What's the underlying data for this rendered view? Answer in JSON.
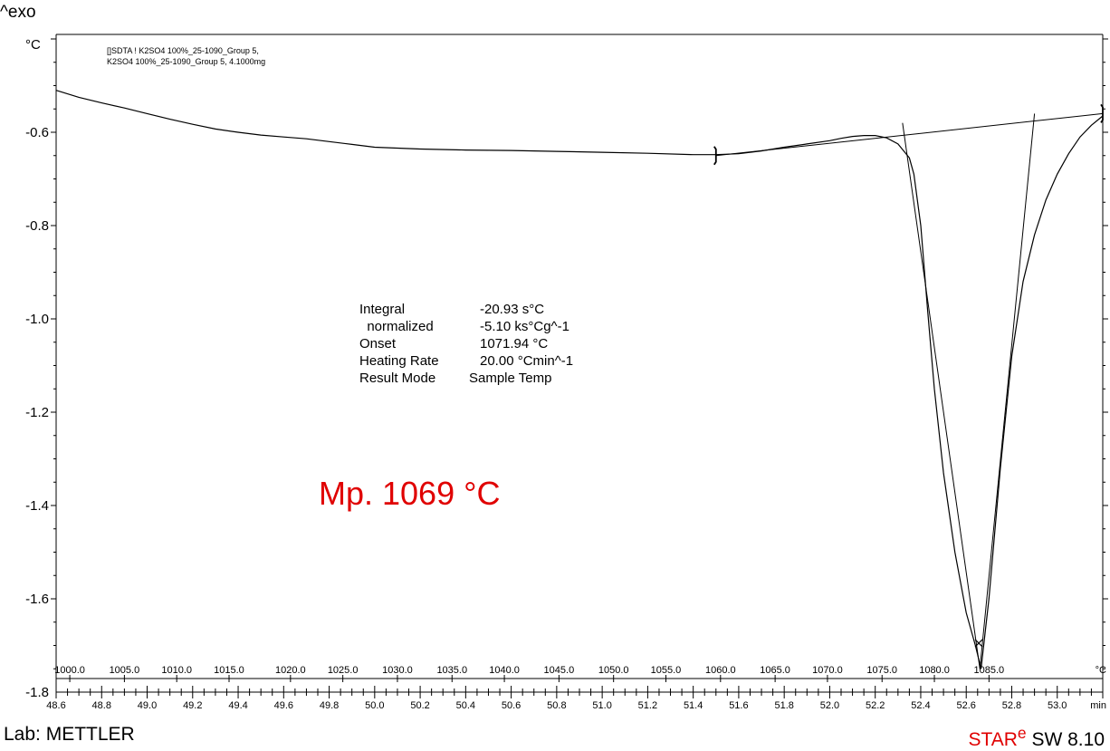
{
  "header": {
    "exo_label": "^exo"
  },
  "footer": {
    "lab": "Lab: METTLER",
    "software_prefix": "STAR",
    "software_superscript": "e",
    "software_suffix": " SW 8.10"
  },
  "chart_data": {
    "type": "line",
    "y_unit": "°C",
    "x_unit": "min",
    "temp_unit": "°C",
    "ylim": [
      -1.8,
      -0.4
    ],
    "yticks": [
      -0.6,
      -0.8,
      -1.0,
      -1.2,
      -1.4,
      -1.6,
      -1.8
    ],
    "ytick_labels": [
      "-0.6",
      "-0.8",
      "-1.0",
      "-1.2",
      "-1.4",
      "-1.6",
      "-1.8"
    ],
    "xlim": [
      48.6,
      53.2
    ],
    "xticks": [
      48.6,
      48.8,
      49.0,
      49.2,
      49.4,
      49.6,
      49.8,
      50.0,
      50.2,
      50.4,
      50.6,
      50.8,
      51.0,
      51.2,
      51.4,
      51.6,
      51.8,
      52.0,
      52.2,
      52.4,
      52.6,
      52.8,
      53.0
    ],
    "xtick_labels": [
      "48.6",
      "48.8",
      "49.0",
      "49.2",
      "49.4",
      "49.6",
      "49.8",
      "50.0",
      "50.2",
      "50.4",
      "50.6",
      "50.8",
      "51.0",
      "51.2",
      "51.4",
      "51.6",
      "51.8",
      "52.0",
      "52.2",
      "52.4",
      "52.6",
      "52.8",
      "53.0"
    ],
    "temp_ticks": [
      1000,
      1005,
      1010,
      1015,
      1020,
      1025,
      1030,
      1035,
      1040,
      1045,
      1050,
      1055,
      1060,
      1065,
      1070,
      1075,
      1080,
      1085
    ],
    "temp_tick_labels": [
      "1000.0",
      "1005.0",
      "1010.0",
      "1015.0",
      "1020.0",
      "1025.0",
      "1030.0",
      "1035.0",
      "1040.0",
      "1045.0",
      "1050.0",
      "1055.0",
      "1060.0",
      "1065.0",
      "1070.0",
      "1075.0",
      "1080.0",
      "1085.0"
    ],
    "temp_axis_x": [
      48.66,
      48.9,
      49.13,
      49.36,
      49.63,
      49.86,
      50.1,
      50.34,
      50.57,
      50.81,
      51.05,
      51.28,
      51.52,
      51.76,
      51.99,
      52.23,
      52.46,
      52.7
    ],
    "legend_lines": [
      "[]SDTA ! K2SO4 100%_25-1090_Group 5,",
      "K2SO4 100%_25-1090_Group 5, 4.1000mg"
    ],
    "series": [
      {
        "x": [
          48.6,
          48.7,
          48.8,
          48.9,
          49.0,
          49.1,
          49.2,
          49.3,
          49.4,
          49.5,
          49.6,
          49.7,
          49.8,
          49.9,
          50.0,
          50.2,
          50.4,
          50.6,
          50.8,
          51.0,
          51.2,
          51.4,
          51.5,
          51.6,
          51.7,
          51.8,
          51.9,
          52.0,
          52.05,
          52.1,
          52.15,
          52.2,
          52.25,
          52.3,
          52.35,
          52.37,
          52.4,
          52.43,
          52.46,
          52.5,
          52.55,
          52.6,
          52.64,
          52.665,
          52.7,
          52.75,
          52.8,
          52.85,
          52.9,
          52.95,
          53.0,
          53.05,
          53.1,
          53.15,
          53.2
        ],
        "y": [
          -0.51,
          -0.525,
          -0.537,
          -0.548,
          -0.56,
          -0.572,
          -0.583,
          -0.593,
          -0.6,
          -0.606,
          -0.61,
          -0.614,
          -0.62,
          -0.626,
          -0.632,
          -0.636,
          -0.638,
          -0.639,
          -0.641,
          -0.643,
          -0.645,
          -0.648,
          -0.648,
          -0.646,
          -0.64,
          -0.632,
          -0.625,
          -0.618,
          -0.613,
          -0.609,
          -0.607,
          -0.607,
          -0.612,
          -0.625,
          -0.655,
          -0.69,
          -0.8,
          -0.98,
          -1.15,
          -1.33,
          -1.5,
          -1.63,
          -1.7,
          -1.75,
          -1.6,
          -1.32,
          -1.08,
          -0.92,
          -0.82,
          -0.745,
          -0.69,
          -0.646,
          -0.61,
          -0.585,
          -0.565
        ]
      }
    ],
    "baseline": {
      "x": [
        51.5,
        53.2
      ],
      "y": [
        -0.65,
        -0.56
      ]
    },
    "tangents": [
      {
        "x": [
          52.32,
          52.66
        ],
        "y": [
          -0.58,
          -1.75
        ]
      },
      {
        "x": [
          52.66,
          52.9
        ],
        "y": [
          -1.75,
          -0.56
        ]
      }
    ],
    "markers": [
      {
        "x": 51.5,
        "y": -0.65,
        "symbol": "limit"
      },
      {
        "x": 53.2,
        "y": -0.56,
        "symbol": "limit"
      },
      {
        "x": 52.655,
        "y": -1.695,
        "symbol": "x"
      }
    ],
    "results": [
      {
        "label": "Integral",
        "value": "-20.93 s°C"
      },
      {
        "label": "  normalized",
        "value": "-5.10 ks°Cg^-1"
      },
      {
        "label": "Onset",
        "value": "1071.94 °C"
      },
      {
        "label": "Heating Rate",
        "value": "20.00 °Cmin^-1"
      },
      {
        "label": "Result Mode",
        "value": "Sample Temp"
      }
    ],
    "annotation": {
      "text": "Mp. 1069 °C",
      "color": "#e00000"
    },
    "line_color": "#000000"
  }
}
